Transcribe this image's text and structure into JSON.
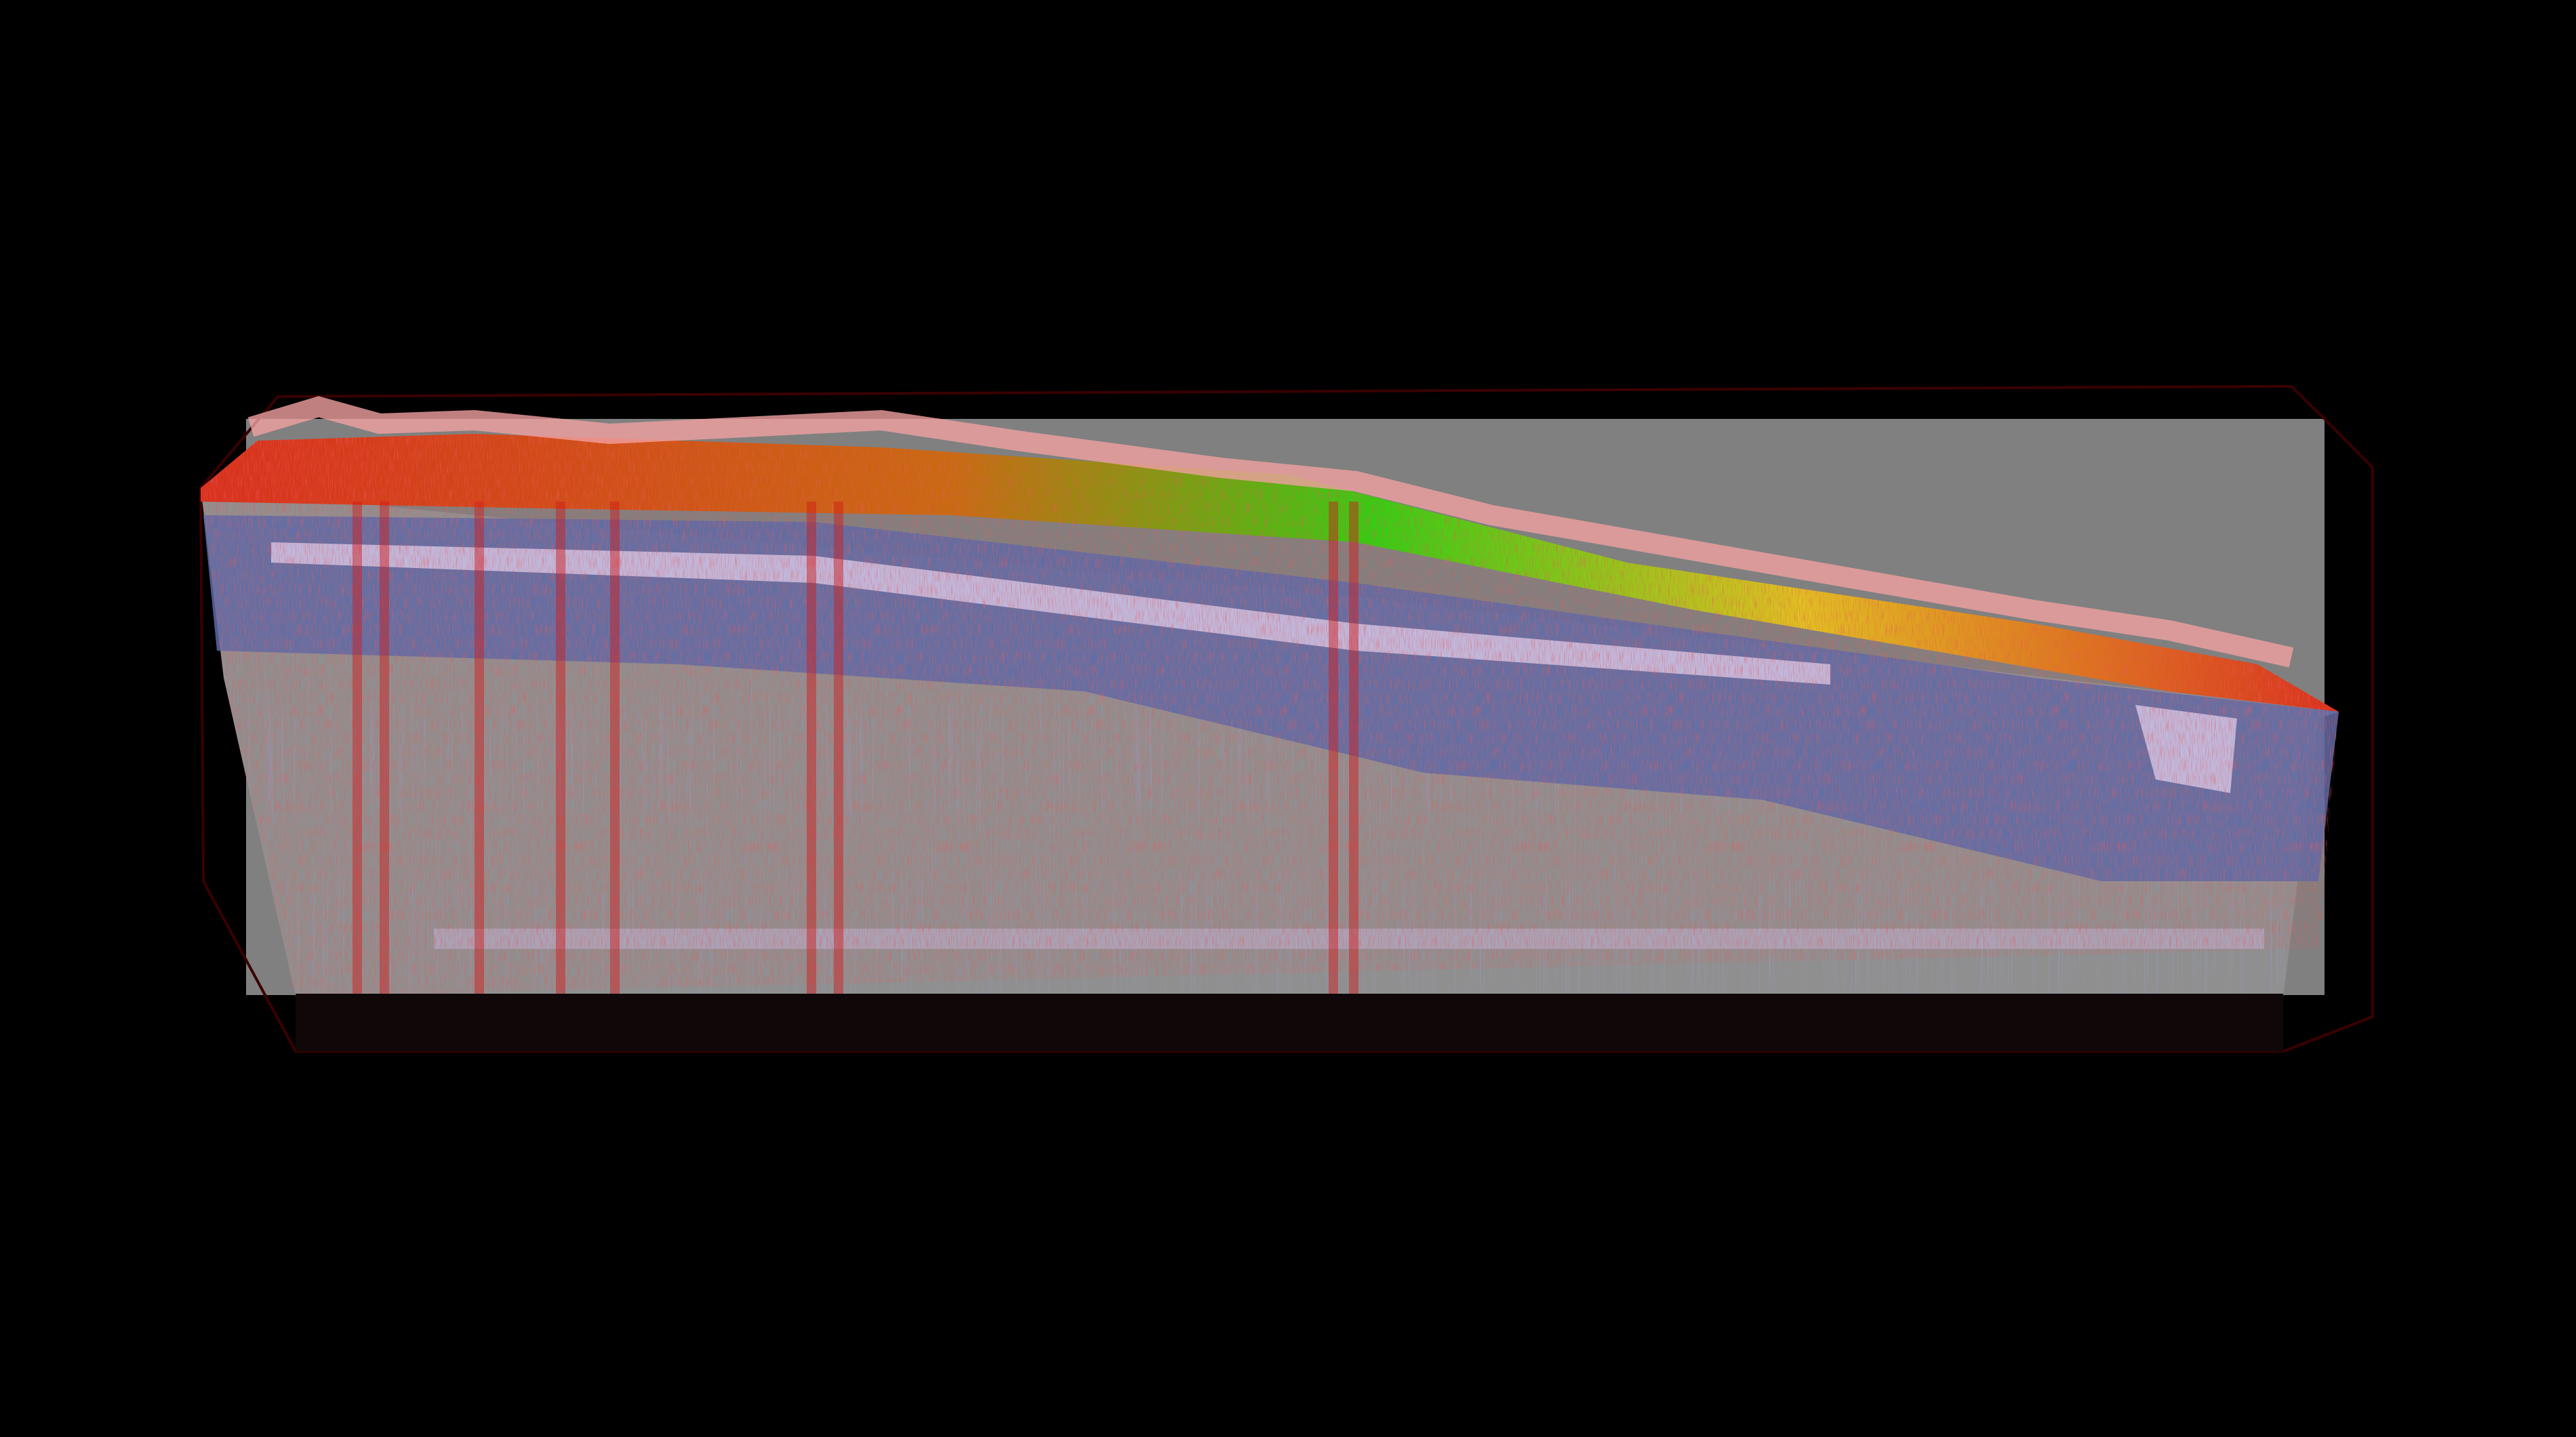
{
  "colors": {
    "background": "#000000",
    "back_panel": "#808080",
    "volume_gray": "#8f8f8f",
    "surface_pink": "#f0a0a0",
    "top_red": "#d8301c",
    "top_orange": "#c86a10",
    "top_green": "#30d010",
    "top_yellow": "#e0c020",
    "layer_blue": "#5a6aa8",
    "layer_lavender": "#c0b8dc",
    "speckle_red": "#d01818",
    "frame_dark_red": "#3a0000"
  }
}
